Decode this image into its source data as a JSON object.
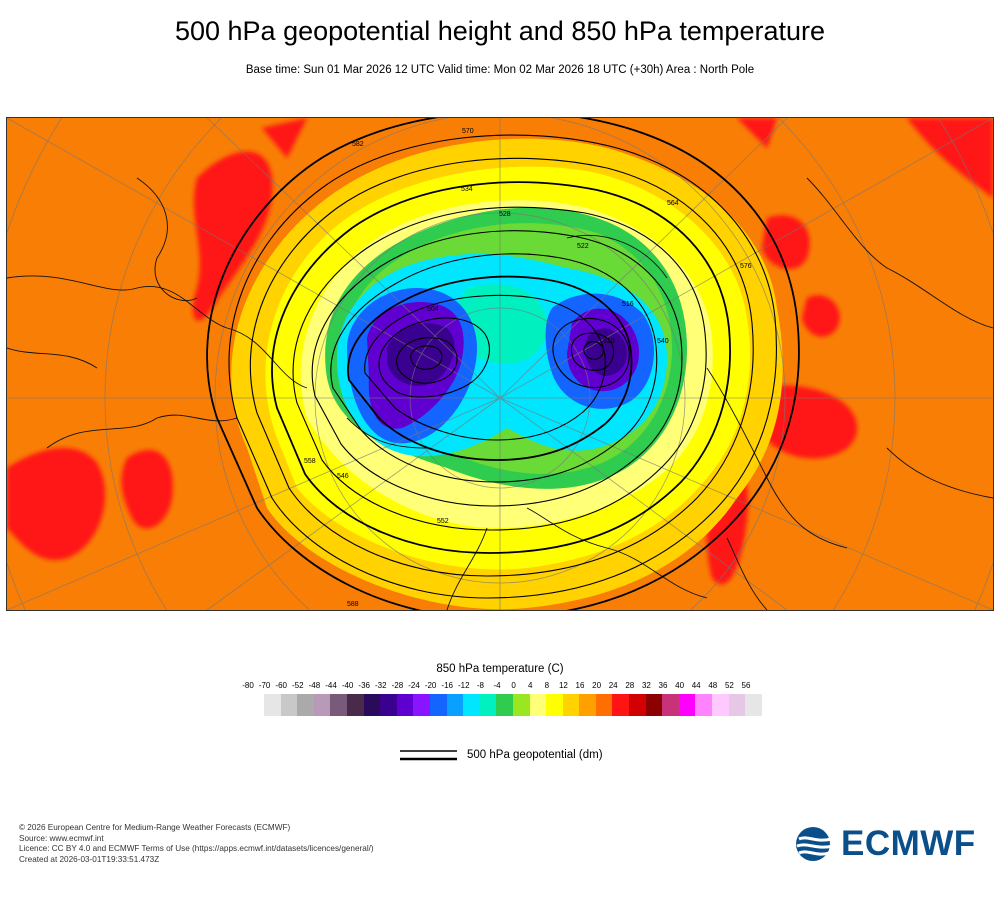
{
  "header": {
    "title": "500 hPa geopotential height and 850 hPa temperature",
    "subtitle": "Base time: Sun 01 Mar 2026 12 UTC Valid time: Mon 02 Mar 2026 18 UTC (+30h) Area : North Pole"
  },
  "map": {
    "area": "North Pole",
    "contour_labels": [
      "504",
      "510",
      "516",
      "522",
      "528",
      "534",
      "540",
      "546",
      "552",
      "558",
      "564",
      "570",
      "576",
      "582",
      "588"
    ]
  },
  "colorbar": {
    "title": "850 hPa temperature (C)",
    "ticks": [
      "-80",
      "-70",
      "-60",
      "-52",
      "-48",
      "-44",
      "-40",
      "-36",
      "-32",
      "-28",
      "-24",
      "-20",
      "-16",
      "-12",
      "-8",
      "-4",
      "0",
      "4",
      "8",
      "12",
      "16",
      "20",
      "24",
      "28",
      "32",
      "36",
      "40",
      "44",
      "48",
      "52",
      "56"
    ],
    "colors": [
      "#e6e6e6",
      "#c8c8c8",
      "#aaaaaa",
      "#b89ab8",
      "#7a5a7a",
      "#4a2a4a",
      "#2a0a5a",
      "#3a0090",
      "#6000d0",
      "#8a14ff",
      "#1464ff",
      "#0aa0ff",
      "#00e6ff",
      "#00f0c0",
      "#30cc50",
      "#9ae620",
      "#ffff78",
      "#ffff00",
      "#ffd200",
      "#ffa000",
      "#ff6e00",
      "#ff1414",
      "#d20000",
      "#8c0000",
      "#c83278",
      "#ff00ff",
      "#ff82ff",
      "#ffc8ff",
      "#e6c8e6",
      "#e6e6e6"
    ]
  },
  "legend": {
    "label": "500 hPa geopotential (dm)"
  },
  "footer": {
    "lines": [
      "© 2026 European Centre for Medium-Range Weather Forecasts (ECMWF)",
      "Source: www.ecmwf.int",
      "Licence: CC BY 4.0 and ECMWF Terms of Use (https://apps.ecmwf.int/datasets/licences/general/)",
      "Created at 2026-03-01T19:33:51.473Z"
    ]
  },
  "logo": {
    "text": "ECMWF"
  }
}
